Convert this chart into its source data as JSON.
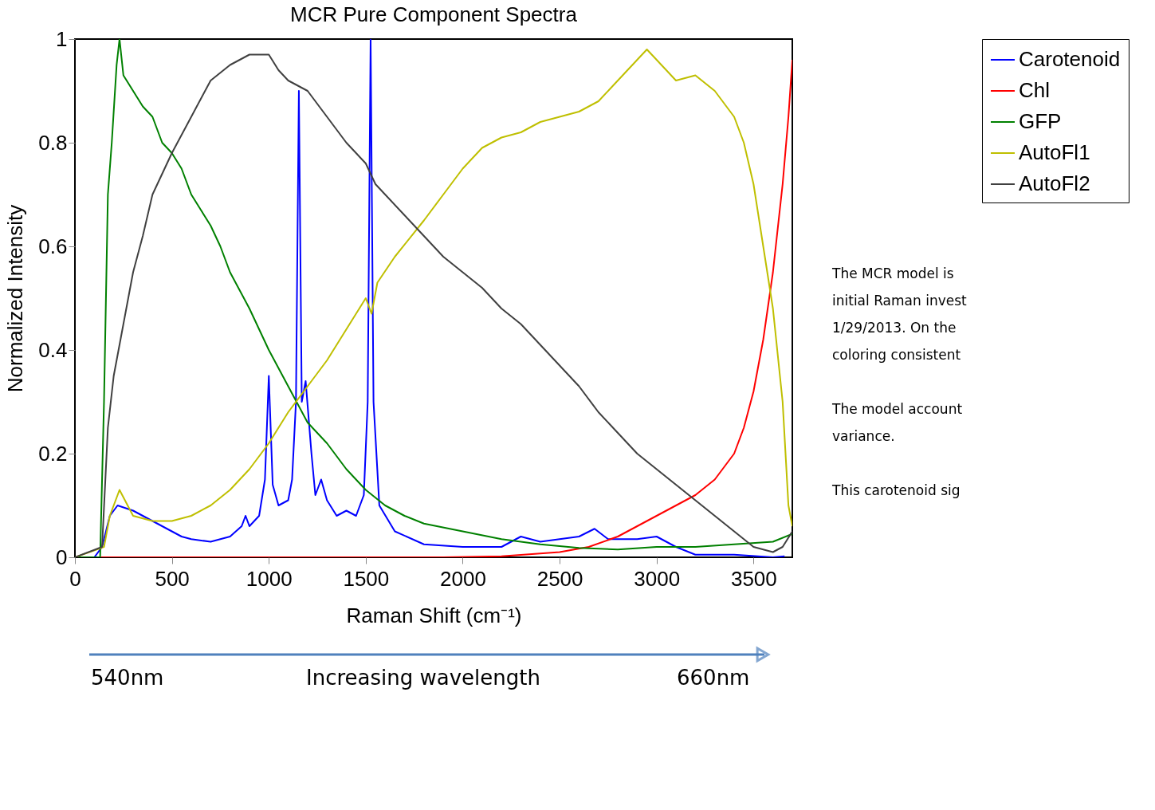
{
  "chart_data": {
    "type": "line",
    "title": "MCR Pure Component Spectra",
    "xlabel": "Raman Shift (cm⁻¹)",
    "ylabel": "Normalized Intensity",
    "xlim": [
      0,
      3700
    ],
    "xticks": [
      0,
      500,
      1000,
      1500,
      2000,
      2500,
      3000,
      3500
    ],
    "ylim": [
      0,
      1
    ],
    "yticks": [
      0,
      0.2,
      0.4,
      0.6,
      0.8,
      1
    ],
    "grid": false,
    "legend": "right",
    "line_style": "solid",
    "marker": "none",
    "annotations": [
      "The MCR model is",
      "initial Raman invest",
      "1/29/2013. On the",
      "coloring consistent",
      "The model account",
      "variance.",
      "This carotenoid sig",
      "540nm",
      "Increasing wavelength",
      "660nm"
    ],
    "series": [
      {
        "name": "Carotenoid",
        "color": "#0000ff",
        "x": [
          0,
          100,
          140,
          180,
          220,
          300,
          400,
          500,
          550,
          600,
          700,
          800,
          860,
          880,
          900,
          950,
          980,
          1000,
          1020,
          1050,
          1100,
          1120,
          1140,
          1155,
          1170,
          1190,
          1220,
          1240,
          1270,
          1300,
          1350,
          1400,
          1450,
          1490,
          1510,
          1525,
          1540,
          1570,
          1650,
          1800,
          2000,
          2200,
          2300,
          2400,
          2500,
          2600,
          2680,
          2750,
          2900,
          3000,
          3100,
          3200,
          3400,
          3600,
          3660
        ],
        "values": [
          0,
          0,
          0.02,
          0.08,
          0.1,
          0.09,
          0.07,
          0.05,
          0.04,
          0.035,
          0.03,
          0.04,
          0.06,
          0.08,
          0.06,
          0.08,
          0.15,
          0.35,
          0.14,
          0.1,
          0.11,
          0.15,
          0.3,
          0.9,
          0.3,
          0.34,
          0.2,
          0.12,
          0.15,
          0.11,
          0.08,
          0.09,
          0.08,
          0.12,
          0.3,
          1.0,
          0.3,
          0.1,
          0.05,
          0.025,
          0.02,
          0.02,
          0.04,
          0.03,
          0.035,
          0.04,
          0.055,
          0.035,
          0.035,
          0.04,
          0.02,
          0.005,
          0.005,
          0,
          0.002
        ]
      },
      {
        "name": "Chl",
        "color": "#ff0000",
        "x": [
          0,
          1900,
          2200,
          2500,
          2650,
          2800,
          2900,
          3000,
          3100,
          3200,
          3300,
          3400,
          3450,
          3500,
          3550,
          3600,
          3650,
          3680,
          3700
        ],
        "values": [
          0,
          0,
          0.002,
          0.01,
          0.02,
          0.04,
          0.06,
          0.08,
          0.1,
          0.12,
          0.15,
          0.2,
          0.25,
          0.32,
          0.42,
          0.55,
          0.72,
          0.85,
          0.96
        ]
      },
      {
        "name": "GFP",
        "color": "#008000",
        "x": [
          0,
          130,
          150,
          170,
          190,
          215,
          230,
          250,
          300,
          350,
          400,
          450,
          500,
          550,
          600,
          650,
          700,
          750,
          800,
          900,
          1000,
          1100,
          1200,
          1300,
          1400,
          1500,
          1600,
          1700,
          1800,
          2000,
          2200,
          2400,
          2600,
          2800,
          3000,
          3200,
          3400,
          3600,
          3700
        ],
        "values": [
          0,
          0,
          0.3,
          0.7,
          0.8,
          0.95,
          1.0,
          0.93,
          0.9,
          0.87,
          0.85,
          0.8,
          0.78,
          0.75,
          0.7,
          0.67,
          0.64,
          0.6,
          0.55,
          0.48,
          0.4,
          0.33,
          0.26,
          0.22,
          0.17,
          0.13,
          0.1,
          0.08,
          0.065,
          0.05,
          0.035,
          0.025,
          0.018,
          0.015,
          0.02,
          0.02,
          0.025,
          0.03,
          0.045
        ]
      },
      {
        "name": "AutoFl1",
        "color": "#bfbf00",
        "x": [
          0,
          150,
          180,
          230,
          300,
          400,
          500,
          600,
          700,
          800,
          900,
          1000,
          1100,
          1200,
          1300,
          1400,
          1500,
          1530,
          1560,
          1650,
          1800,
          1900,
          2000,
          2100,
          2200,
          2300,
          2400,
          2500,
          2600,
          2700,
          2800,
          2900,
          2950,
          3000,
          3100,
          3200,
          3300,
          3400,
          3450,
          3500,
          3550,
          3600,
          3650,
          3680,
          3700
        ],
        "values": [
          0,
          0.02,
          0.08,
          0.13,
          0.08,
          0.07,
          0.07,
          0.08,
          0.1,
          0.13,
          0.17,
          0.22,
          0.28,
          0.33,
          0.38,
          0.44,
          0.5,
          0.47,
          0.53,
          0.58,
          0.65,
          0.7,
          0.75,
          0.79,
          0.81,
          0.82,
          0.84,
          0.85,
          0.86,
          0.88,
          0.92,
          0.96,
          0.98,
          0.96,
          0.92,
          0.93,
          0.9,
          0.85,
          0.8,
          0.72,
          0.6,
          0.48,
          0.3,
          0.1,
          0.06
        ]
      },
      {
        "name": "AutoFl2",
        "color": "#404040",
        "x": [
          0,
          140,
          170,
          200,
          250,
          300,
          350,
          400,
          500,
          600,
          700,
          800,
          900,
          1000,
          1050,
          1100,
          1200,
          1300,
          1400,
          1500,
          1550,
          1600,
          1700,
          1800,
          1900,
          2000,
          2100,
          2200,
          2300,
          2400,
          2500,
          2600,
          2700,
          2800,
          2900,
          3000,
          3100,
          3200,
          3300,
          3400,
          3500,
          3600,
          3650,
          3700
        ],
        "values": [
          0,
          0.02,
          0.25,
          0.35,
          0.45,
          0.55,
          0.62,
          0.7,
          0.78,
          0.85,
          0.92,
          0.95,
          0.97,
          0.97,
          0.94,
          0.92,
          0.9,
          0.85,
          0.8,
          0.76,
          0.72,
          0.7,
          0.66,
          0.62,
          0.58,
          0.55,
          0.52,
          0.48,
          0.45,
          0.41,
          0.37,
          0.33,
          0.28,
          0.24,
          0.2,
          0.17,
          0.14,
          0.11,
          0.08,
          0.05,
          0.02,
          0.01,
          0.02,
          0.05
        ]
      }
    ]
  }
}
